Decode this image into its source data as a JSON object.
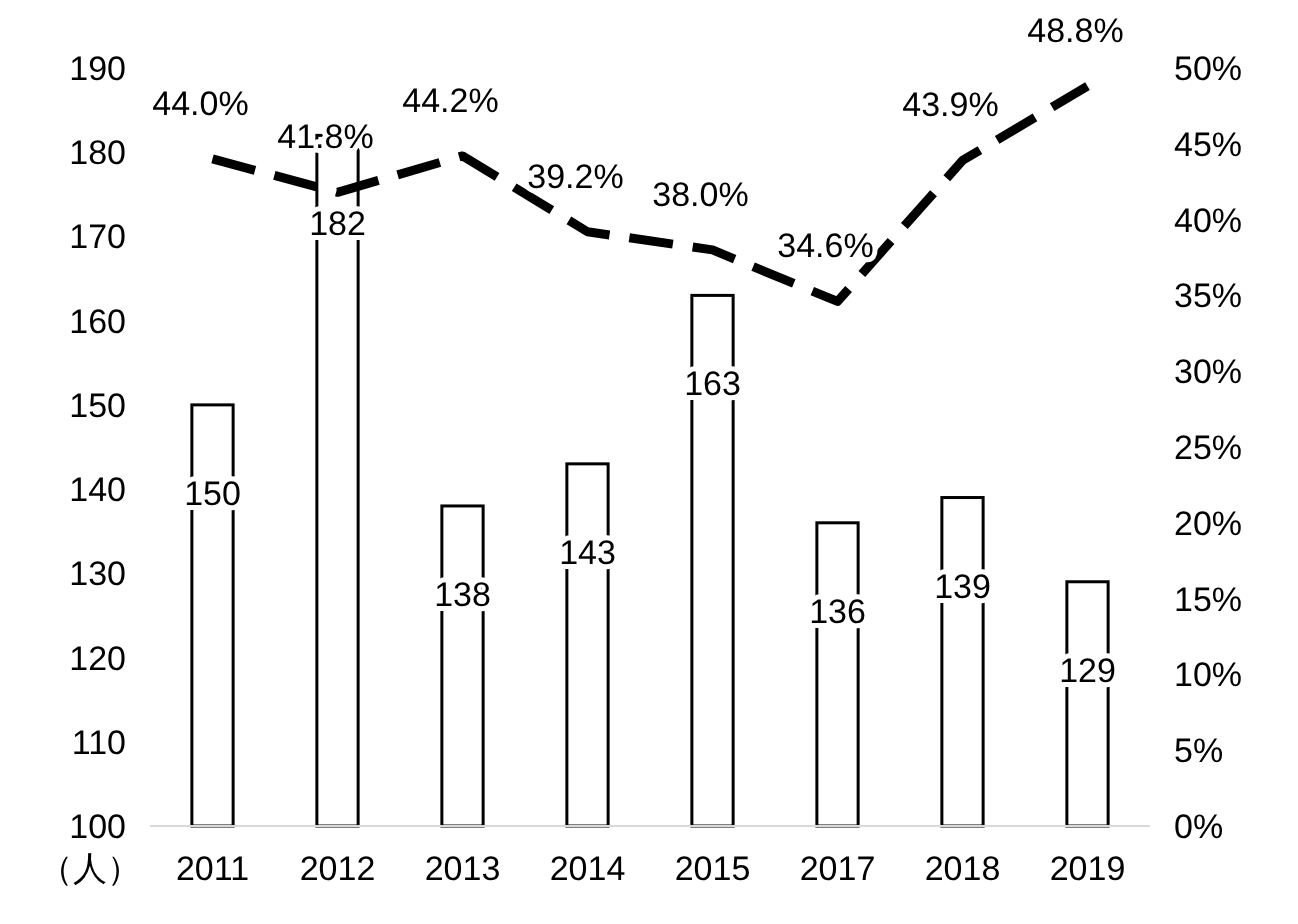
{
  "chart_data": {
    "type": "bar",
    "ylabel": "（人）",
    "categories": [
      "2011",
      "2012",
      "2013",
      "2014",
      "2015",
      "2017",
      "2018",
      "2019"
    ],
    "ylim": [
      100,
      190
    ],
    "yticks": [
      100,
      110,
      120,
      130,
      140,
      150,
      160,
      170,
      180,
      190
    ],
    "y2lim": [
      0,
      50
    ],
    "y2ticks": [
      {
        "value": 0,
        "label": "0%"
      },
      {
        "value": 5,
        "label": "5%"
      },
      {
        "value": 10,
        "label": "10%"
      },
      {
        "value": 15,
        "label": "15%"
      },
      {
        "value": 20,
        "label": "20%"
      },
      {
        "value": 25,
        "label": "25%"
      },
      {
        "value": 30,
        "label": "30%"
      },
      {
        "value": 35,
        "label": "35%"
      },
      {
        "value": 40,
        "label": "40%"
      },
      {
        "value": 45,
        "label": "45%"
      },
      {
        "value": 50,
        "label": "50%"
      }
    ],
    "series": [
      {
        "color": "#ffffff",
        "values": [
          150,
          182,
          138,
          143,
          163,
          136,
          139,
          129
        ],
        "value_labels": [
          "150",
          "182",
          "138",
          "143",
          "163",
          "136",
          "139",
          "129"
        ]
      },
      {
        "type": "line",
        "axis": "y2",
        "color": "#000000",
        "line_style": "dashed",
        "values": [
          44.0,
          41.8,
          44.2,
          39.2,
          38.0,
          34.6,
          43.9,
          48.8
        ],
        "value_labels": [
          "44.0%",
          "41.8%",
          "44.2%",
          "39.2%",
          "38.0%",
          "34.6%",
          "43.9%",
          "48.8%"
        ]
      }
    ]
  }
}
